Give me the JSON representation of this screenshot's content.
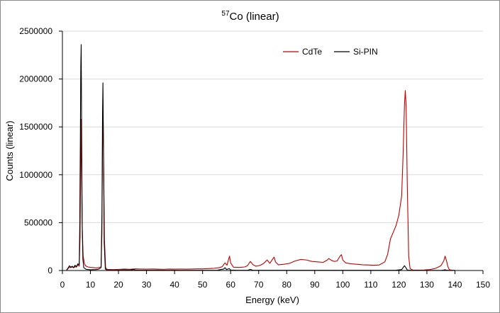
{
  "chart_data": {
    "type": "line",
    "title": {
      "superscript": "57",
      "text": "Co (linear)"
    },
    "xlabel": "Energy (keV)",
    "ylabel": "Counts (linear)",
    "xlim": [
      0,
      150
    ],
    "ylim": [
      0,
      2500000
    ],
    "xticks": [
      0,
      10,
      20,
      30,
      40,
      50,
      60,
      70,
      80,
      90,
      100,
      110,
      120,
      130,
      140,
      150
    ],
    "yticks": [
      0,
      500000,
      1000000,
      1500000,
      2000000,
      2500000
    ],
    "ytick_labels": [
      "0",
      "500000",
      "1000000",
      "1500000",
      "2000000",
      "2500000"
    ],
    "grid": {
      "horizontal": true,
      "vertical": false
    },
    "legend_position": "top-right",
    "series": [
      {
        "name": "CdTe",
        "color": "#c00000",
        "points": [
          [
            1.5,
            3000
          ],
          [
            2,
            20000
          ],
          [
            2.5,
            35000
          ],
          [
            3,
            30000
          ],
          [
            3.5,
            38000
          ],
          [
            4,
            28000
          ],
          [
            4.5,
            40000
          ],
          [
            5,
            35000
          ],
          [
            5.5,
            60000
          ],
          [
            6,
            45000
          ],
          [
            6.3,
            350000
          ],
          [
            6.5,
            1000000
          ],
          [
            6.7,
            1580000
          ],
          [
            6.9,
            900000
          ],
          [
            7.1,
            420000
          ],
          [
            7.4,
            150000
          ],
          [
            7.8,
            80000
          ],
          [
            8.2,
            50000
          ],
          [
            9,
            38000
          ],
          [
            10,
            33000
          ],
          [
            11,
            30000
          ],
          [
            12,
            27000
          ],
          [
            13,
            30000
          ],
          [
            13.8,
            40000
          ],
          [
            14.1,
            400000
          ],
          [
            14.3,
            1300000
          ],
          [
            14.45,
            1780000
          ],
          [
            14.7,
            1100000
          ],
          [
            15,
            320000
          ],
          [
            15.4,
            30000
          ],
          [
            16,
            12000
          ],
          [
            18,
            10000
          ],
          [
            20,
            12000
          ],
          [
            22,
            15000
          ],
          [
            24,
            13000
          ],
          [
            26,
            17000
          ],
          [
            28,
            15000
          ],
          [
            30,
            14000
          ],
          [
            32,
            16000
          ],
          [
            34,
            14000
          ],
          [
            36,
            13000
          ],
          [
            38,
            15000
          ],
          [
            40,
            14000
          ],
          [
            42,
            15000
          ],
          [
            44,
            14000
          ],
          [
            46,
            15000
          ],
          [
            48,
            17000
          ],
          [
            50,
            17000
          ],
          [
            52,
            20000
          ],
          [
            54,
            23000
          ],
          [
            56,
            30000
          ],
          [
            57,
            40000
          ],
          [
            58,
            80000
          ],
          [
            58.7,
            55000
          ],
          [
            59.3,
            120000
          ],
          [
            59.6,
            150000
          ],
          [
            60,
            80000
          ],
          [
            61,
            35000
          ],
          [
            63,
            32000
          ],
          [
            65,
            37000
          ],
          [
            66,
            50000
          ],
          [
            67,
            95000
          ],
          [
            68,
            60000
          ],
          [
            69,
            45000
          ],
          [
            70,
            50000
          ],
          [
            71,
            60000
          ],
          [
            72,
            80000
          ],
          [
            73,
            110000
          ],
          [
            74,
            75000
          ],
          [
            75,
            120000
          ],
          [
            75.5,
            140000
          ],
          [
            76,
            90000
          ],
          [
            77,
            60000
          ],
          [
            79,
            65000
          ],
          [
            81,
            75000
          ],
          [
            83,
            100000
          ],
          [
            85,
            115000
          ],
          [
            87,
            110000
          ],
          [
            89,
            95000
          ],
          [
            91,
            90000
          ],
          [
            93,
            85000
          ],
          [
            94.5,
            110000
          ],
          [
            95,
            125000
          ],
          [
            96,
            105000
          ],
          [
            97,
            95000
          ],
          [
            98,
            100000
          ],
          [
            99,
            150000
          ],
          [
            99.5,
            165000
          ],
          [
            100,
            110000
          ],
          [
            101,
            80000
          ],
          [
            103,
            70000
          ],
          [
            105,
            65000
          ],
          [
            107,
            60000
          ],
          [
            109,
            58000
          ],
          [
            111,
            55000
          ],
          [
            113,
            58000
          ],
          [
            115,
            90000
          ],
          [
            116,
            170000
          ],
          [
            117,
            330000
          ],
          [
            118,
            400000
          ],
          [
            119,
            470000
          ],
          [
            120,
            580000
          ],
          [
            121,
            780000
          ],
          [
            121.5,
            1200000
          ],
          [
            122,
            1730000
          ],
          [
            122.3,
            1880000
          ],
          [
            122.6,
            1700000
          ],
          [
            123,
            900000
          ],
          [
            123.5,
            150000
          ],
          [
            124,
            20000
          ],
          [
            125,
            5000
          ],
          [
            127,
            4000
          ],
          [
            129,
            5000
          ],
          [
            130,
            8000
          ],
          [
            131,
            10000
          ],
          [
            132,
            15000
          ],
          [
            133,
            22000
          ],
          [
            134,
            35000
          ],
          [
            135,
            50000
          ],
          [
            136,
            100000
          ],
          [
            136.5,
            150000
          ],
          [
            137,
            100000
          ],
          [
            137.5,
            40000
          ],
          [
            138,
            8000
          ],
          [
            139,
            3000
          ],
          [
            140,
            2000
          ]
        ]
      },
      {
        "name": "Si-PIN",
        "color": "#000000",
        "points": [
          [
            1.5,
            5000
          ],
          [
            2,
            25000
          ],
          [
            2.5,
            50000
          ],
          [
            3,
            35000
          ],
          [
            3.5,
            45000
          ],
          [
            4,
            30000
          ],
          [
            4.5,
            55000
          ],
          [
            5,
            40000
          ],
          [
            5.5,
            70000
          ],
          [
            6,
            60000
          ],
          [
            6.2,
            500000
          ],
          [
            6.4,
            1400000
          ],
          [
            6.55,
            2120000
          ],
          [
            6.7,
            2360000
          ],
          [
            6.85,
            1500000
          ],
          [
            7.05,
            500000
          ],
          [
            7.3,
            120000
          ],
          [
            7.6,
            30000
          ],
          [
            8.5,
            12000
          ],
          [
            10,
            8000
          ],
          [
            12,
            10000
          ],
          [
            13,
            15000
          ],
          [
            13.8,
            30000
          ],
          [
            14.1,
            600000
          ],
          [
            14.3,
            1600000
          ],
          [
            14.45,
            1960000
          ],
          [
            14.65,
            1300000
          ],
          [
            14.9,
            300000
          ],
          [
            15.3,
            15000
          ],
          [
            16,
            5000
          ],
          [
            18,
            3000
          ],
          [
            20,
            4000
          ],
          [
            22,
            6000
          ],
          [
            24,
            5000
          ],
          [
            25.5,
            10000
          ],
          [
            26,
            4000
          ],
          [
            28,
            3000
          ],
          [
            30,
            3000
          ],
          [
            32,
            3500
          ],
          [
            34,
            4000
          ],
          [
            36,
            3000
          ],
          [
            38,
            2500
          ],
          [
            40,
            3000
          ],
          [
            42,
            2500
          ],
          [
            45,
            2000
          ],
          [
            50,
            2000
          ],
          [
            55,
            2500
          ],
          [
            57.5,
            15000
          ],
          [
            58,
            30000
          ],
          [
            58.5,
            10000
          ],
          [
            59.5,
            20000
          ],
          [
            60,
            5000
          ],
          [
            62,
            2000
          ],
          [
            66,
            2000
          ],
          [
            67,
            12000
          ],
          [
            68,
            2000
          ],
          [
            72,
            2000
          ],
          [
            75,
            2000
          ],
          [
            80,
            2000
          ],
          [
            85,
            2000
          ],
          [
            90,
            2000
          ],
          [
            95,
            2000
          ],
          [
            100,
            2000
          ],
          [
            105,
            2000
          ],
          [
            110,
            2000
          ],
          [
            115,
            2000
          ],
          [
            119,
            3000
          ],
          [
            121,
            10000
          ],
          [
            122,
            50000
          ],
          [
            122.5,
            30000
          ],
          [
            123,
            5000
          ],
          [
            125,
            1500
          ],
          [
            130,
            1000
          ],
          [
            135,
            1000
          ],
          [
            136,
            5000
          ],
          [
            136.5,
            8000
          ],
          [
            137,
            3000
          ],
          [
            138,
            1000
          ],
          [
            140,
            500
          ]
        ]
      }
    ],
    "tick_color": "#000000",
    "grid_color": "#d9d9d9",
    "axis_color": "#000000"
  }
}
